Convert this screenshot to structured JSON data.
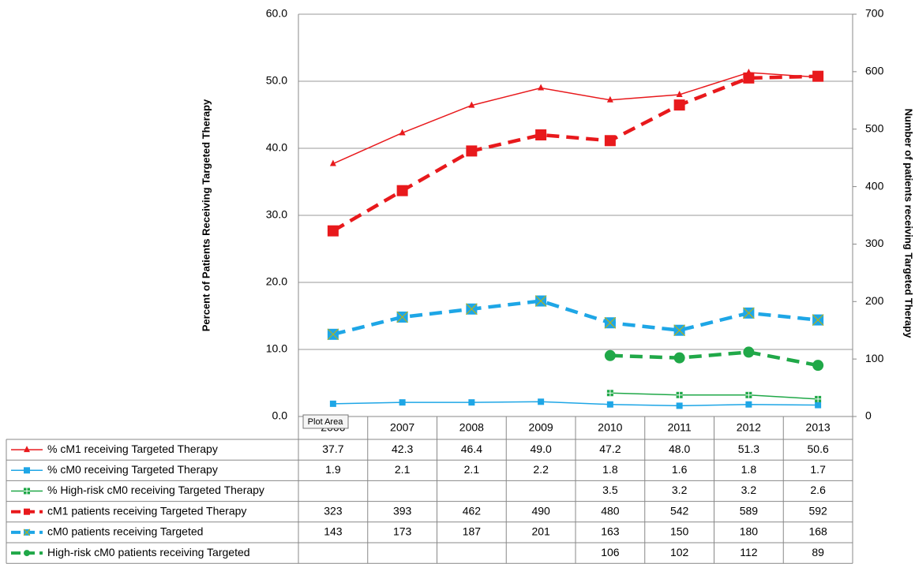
{
  "chart_data": {
    "type": "line",
    "ylabel": "Percent of Patients Receiving Targeted Therapy",
    "y2label": "Number of patients receiving Targeted Therapy",
    "tooltip": "Plot Area",
    "categories": [
      "2006",
      "2007",
      "2008",
      "2009",
      "2010",
      "2011",
      "2012",
      "2013"
    ],
    "ylim": [
      0,
      60
    ],
    "yticks": [
      {
        "value": 0,
        "label": "0.0"
      },
      {
        "value": 10,
        "label": "10.0"
      },
      {
        "value": 20,
        "label": "20.0"
      },
      {
        "value": 30,
        "label": "30.0"
      },
      {
        "value": 40,
        "label": "40.0"
      },
      {
        "value": 50,
        "label": "50.0"
      },
      {
        "value": 60,
        "label": "60.0"
      }
    ],
    "y2lim": [
      0,
      700
    ],
    "y2ticks": [
      0,
      100,
      200,
      300,
      400,
      500,
      600,
      700
    ],
    "grid": true,
    "series": [
      {
        "name": "% cM1 receiving Targeted Therapy",
        "color": "#e8191c",
        "marker": "triangle",
        "style": "thin",
        "values": [
          37.7,
          42.3,
          46.4,
          49.0,
          47.2,
          48.0,
          51.3,
          50.6
        ],
        "value_labels": [
          "37.7",
          "42.3",
          "46.4",
          "49.0",
          "47.2",
          "48.0",
          "51.3",
          "50.6"
        ]
      },
      {
        "name": "% cM0 receiving Targeted Therapy",
        "color": "#1ea6e6",
        "marker": "square",
        "style": "thin",
        "values": [
          1.9,
          2.1,
          2.1,
          2.2,
          1.8,
          1.6,
          1.8,
          1.7
        ],
        "value_labels": [
          "1.9",
          "2.1",
          "2.1",
          "2.2",
          "1.8",
          "1.6",
          "1.8",
          "1.7"
        ]
      },
      {
        "name": "% High-risk cM0 receiving Targeted Therapy",
        "color": "#20a848",
        "marker": "square-plus",
        "style": "thin",
        "values": [
          null,
          null,
          null,
          null,
          3.5,
          3.2,
          3.2,
          2.6
        ],
        "value_labels": [
          null,
          null,
          null,
          null,
          "3.5",
          "3.2",
          "3.2",
          "2.6"
        ]
      },
      {
        "name": "cM1 patients receiving Targeted Therapy",
        "color": "#e8191c",
        "marker": "square",
        "style": "dashed",
        "axis": "y2",
        "values": [
          323,
          393,
          462,
          490,
          480,
          542,
          589,
          592
        ]
      },
      {
        "name": "cM0 patients receiving Targeted",
        "color": "#1ea6e6",
        "marker": "square-x",
        "style": "dashed",
        "axis": "y2",
        "values": [
          143,
          173,
          187,
          201,
          163,
          150,
          180,
          168
        ]
      },
      {
        "name": "High-risk cM0 patients receiving Targeted",
        "color": "#20a848",
        "marker": "circle",
        "style": "dashed",
        "axis": "y2",
        "values": [
          null,
          null,
          null,
          null,
          106,
          102,
          112,
          89
        ]
      }
    ]
  }
}
